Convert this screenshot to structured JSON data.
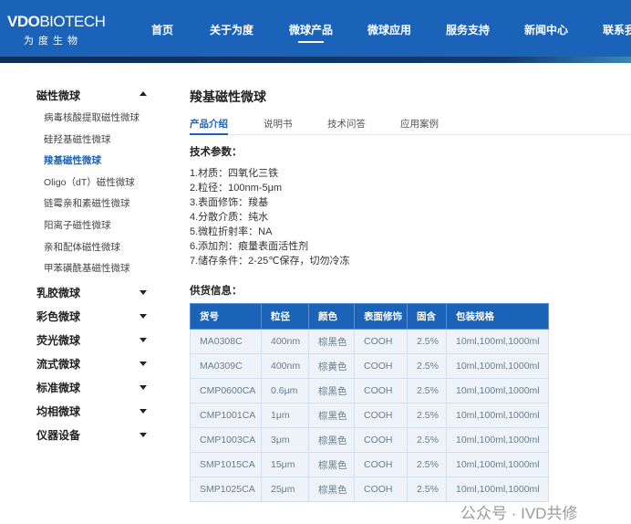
{
  "logo": {
    "en_bold": "VDO",
    "en_light": "BIOTECH",
    "cn": "为度生物"
  },
  "nav": [
    {
      "label": "首页"
    },
    {
      "label": "关于为度"
    },
    {
      "label": "微球产品",
      "active": true
    },
    {
      "label": "微球应用"
    },
    {
      "label": "服务支持"
    },
    {
      "label": "新闻中心"
    },
    {
      "label": "联系我"
    }
  ],
  "sidebar": {
    "groups": [
      {
        "label": "磁性微球",
        "expanded": true
      },
      {
        "label": "乳胶微球"
      },
      {
        "label": "彩色微球"
      },
      {
        "label": "荧光微球"
      },
      {
        "label": "流式微球"
      },
      {
        "label": "标准微球"
      },
      {
        "label": "均相微球"
      },
      {
        "label": "仪器设备"
      }
    ],
    "items": [
      "病毒核酸提取磁性微球",
      "硅羟基磁性微球",
      "羧基磁性微球",
      "Oligo（dT）磁性微球",
      "链霉亲和素磁性微球",
      "阳离子磁性微球",
      "亲和配体磁性微球",
      "甲苯磺酰基磁性微球"
    ],
    "active_item": "羧基磁性微球"
  },
  "main": {
    "title": "羧基磁性微球",
    "tabs": [
      "产品介绍",
      "说明书",
      "技术问答",
      "应用案例"
    ],
    "specs_heading": "技术参数：",
    "specs": [
      "1.材质：四氧化三铁",
      "2.粒径：100nm-5μm",
      "3.表面修饰：羧基",
      "4.分散介质：纯水",
      "5.微粒折射率：NA",
      "6.添加剂：痕量表面活性剂",
      "7.储存条件：2-25℃保存，切勿冷冻"
    ],
    "supply_heading": "供货信息：",
    "table": {
      "headers": [
        "货号",
        "粒径",
        "颜色",
        "表面修饰",
        "固含",
        "包装规格"
      ],
      "rows": [
        [
          "MA0308C",
          "400nm",
          "棕黑色",
          "COOH",
          "2.5%",
          "10ml,100ml,1000ml"
        ],
        [
          "MA0309C",
          "400nm",
          "棕黄色",
          "COOH",
          "2.5%",
          "10ml,100ml,1000ml"
        ],
        [
          "CMP0600CA",
          "0.6μm",
          "棕黑色",
          "COOH",
          "2.5%",
          "10ml,100ml,1000ml"
        ],
        [
          "CMP1001CA",
          "1μm",
          "棕黑色",
          "COOH",
          "2.5%",
          "10ml,100ml,1000ml"
        ],
        [
          "CMP1003CA",
          "3μm",
          "棕黑色",
          "COOH",
          "2.5%",
          "10ml,100ml,1000ml"
        ],
        [
          "SMP1015CA",
          "15μm",
          "棕黑色",
          "COOH",
          "2.5%",
          "10ml,100ml,1000ml"
        ],
        [
          "SMP1025CA",
          "25μm",
          "棕黑色",
          "COOH",
          "2.5%",
          "10ml,100ml,1000ml"
        ]
      ]
    }
  },
  "watermark": "公众号 · IVD共修"
}
